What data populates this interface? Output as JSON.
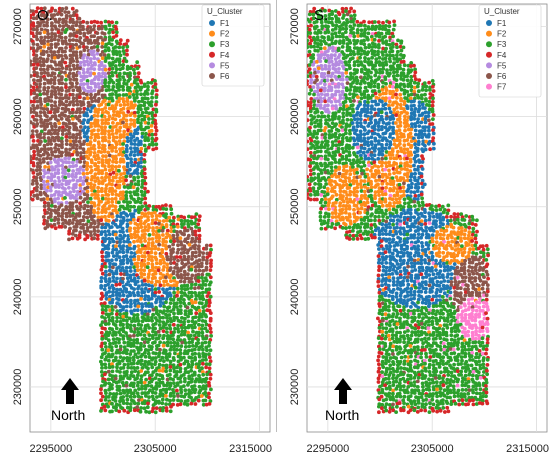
{
  "colors": {
    "F1": "#1f77b4",
    "F2": "#ff8c1a",
    "F3": "#2ca02c",
    "F4": "#d62728",
    "F5": "#b58be0",
    "F6": "#8c564b",
    "F7": "#ff7fd0"
  },
  "axes": {
    "y_ticks": [
      "230000",
      "240000",
      "250000",
      "260000",
      "270000"
    ],
    "x_ticks": [
      "2295000",
      "2305000",
      "2315000"
    ],
    "xlim": [
      2293000,
      2316000
    ],
    "ylim": [
      225000,
      272500
    ]
  },
  "panels": [
    {
      "label": "O.",
      "legend_title": "U_Cluster",
      "legend": [
        "F1",
        "F2",
        "F3",
        "F4",
        "F5",
        "F6"
      ],
      "north_label": "North"
    },
    {
      "label": "S.",
      "legend_title": "U_Cluster",
      "legend": [
        "F1",
        "F2",
        "F3",
        "F4",
        "F5",
        "F6",
        "F7"
      ],
      "north_label": "North"
    }
  ]
}
